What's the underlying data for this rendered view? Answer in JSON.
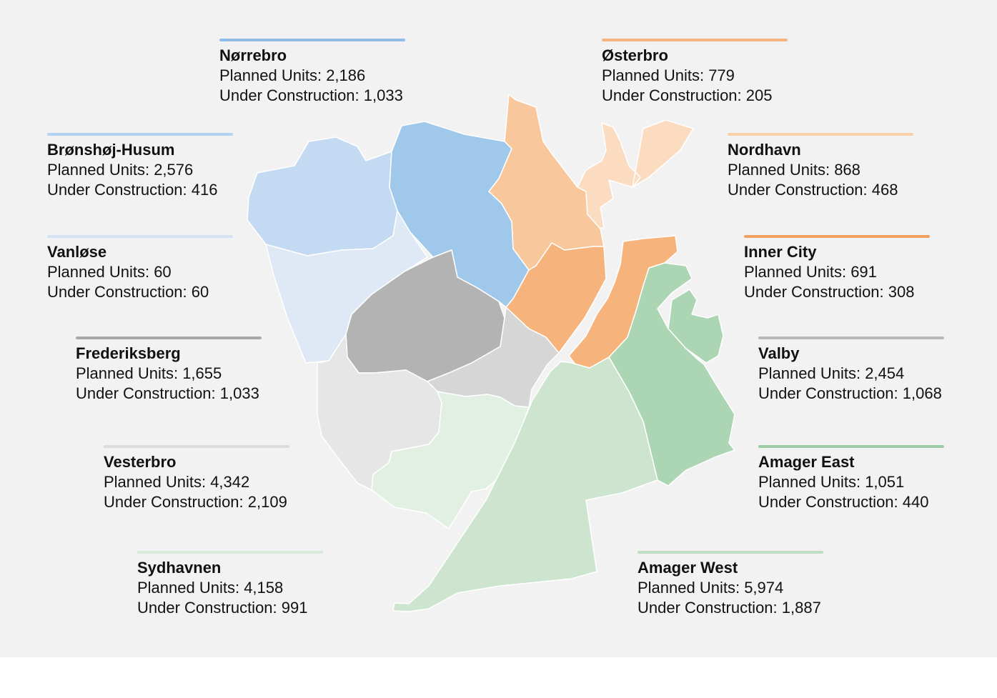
{
  "map": {
    "districts": [
      {
        "id": "norrebro",
        "name": "Nørrebro",
        "planned_label": "Planned Units: 2,186",
        "construction_label": "Under Construction: 1,033",
        "planned_units": 2186,
        "under_construction": 1033,
        "color": "#9fc8ea",
        "bar_color": "#8fbde6"
      },
      {
        "id": "osterbro",
        "name": "Østerbro",
        "planned_label": "Planned Units: 779",
        "construction_label": "Under Construction: 205",
        "planned_units": 779,
        "under_construction": 205,
        "color": "#f8c79c",
        "bar_color": "#f5b57f"
      },
      {
        "id": "bronshoj-husum",
        "name": "Brønshøj-Husum",
        "planned_label": "Planned Units: 2,576",
        "construction_label": "Under Construction: 416",
        "planned_units": 2576,
        "under_construction": 416,
        "color": "#c4daf2",
        "bar_color": "#b4d1ef"
      },
      {
        "id": "nordhavn",
        "name": "Nordhavn",
        "planned_label": "Planned Units: 868",
        "construction_label": "Under Construction: 468",
        "planned_units": 868,
        "under_construction": 468,
        "color": "#fbdcc0",
        "bar_color": "#f8cfa8"
      },
      {
        "id": "vanlose",
        "name": "Vanløse",
        "planned_label": "Planned Units: 60",
        "construction_label": "Under Construction: 60",
        "planned_units": 60,
        "under_construction": 60,
        "color": "#dfe9f6",
        "bar_color": "#d3e3f4"
      },
      {
        "id": "inner-city",
        "name": "Inner City",
        "planned_label": "Planned Units: 691",
        "construction_label": "Under Construction: 308",
        "planned_units": 691,
        "under_construction": 308,
        "color": "#f6b47c",
        "bar_color": "#f0a162"
      },
      {
        "id": "frederiksberg",
        "name": "Frederiksberg",
        "planned_label": "Planned Units: 1,655",
        "construction_label": "Under Construction: 1,033",
        "planned_units": 1655,
        "under_construction": 1033,
        "color": "#b3b3b3",
        "bar_color": "#a8a8a8"
      },
      {
        "id": "valby",
        "name": "Valby",
        "planned_label": "Planned Units: 2,454",
        "construction_label": "Under Construction: 1,068",
        "planned_units": 2454,
        "under_construction": 1068,
        "color": "#d6d6d6",
        "bar_color": "#b8b8b8"
      },
      {
        "id": "vesterbro",
        "name": "Vesterbro",
        "planned_label": "Planned Units: 4,342",
        "construction_label": "Under Construction: 2,109",
        "planned_units": 4342,
        "under_construction": 2109,
        "color": "#e6e6e6",
        "bar_color": "#dcdcdc"
      },
      {
        "id": "amager-east",
        "name": "Amager East",
        "planned_label": "Planned Units: 1,051",
        "construction_label": "Under Construction: 440",
        "planned_units": 1051,
        "under_construction": 440,
        "color": "#acd6b3",
        "bar_color": "#9ccca5"
      },
      {
        "id": "sydhavnen",
        "name": "Sydhavnen",
        "planned_label": "Planned Units: 4,158",
        "construction_label": "Under Construction: 991",
        "planned_units": 4158,
        "under_construction": 991,
        "color": "#e2f0e4",
        "bar_color": "#d8ead9"
      },
      {
        "id": "amager-west",
        "name": "Amager West",
        "planned_label": "Planned Units: 5,974",
        "construction_label": "Under Construction: 1,887",
        "planned_units": 5974,
        "under_construction": 1887,
        "color": "#cde5cf",
        "bar_color": "#bfdec3"
      }
    ]
  }
}
